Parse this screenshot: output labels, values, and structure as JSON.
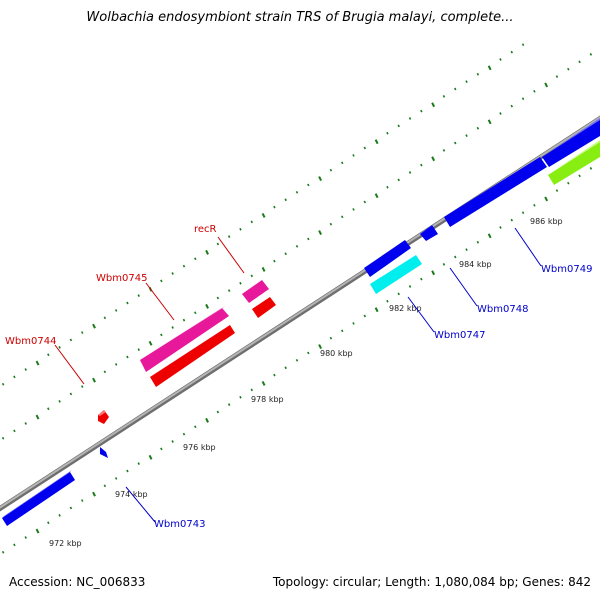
{
  "title": "Wolbachia endosymbiont strain TRS of Brugia malayi, complete...",
  "footer": {
    "accession": "Accession: NC_006833",
    "summary": "Topology: circular; Length: 1,080,084 bp; Genes: 842"
  },
  "colors": {
    "backbone": "#8c8c8c",
    "plus_strand_label": "#cc0000",
    "minus_strand_label": "#0000cc",
    "tick": "#1a7a1a",
    "gene_blue": "#0000ee",
    "gene_red": "#ee0000",
    "gene_magenta": "#ee22aa",
    "gene_cyan": "#00eeee",
    "gene_green": "#88ee11"
  },
  "ticks": [
    "972 kbp",
    "974 kbp",
    "976 kbp",
    "978 kbp",
    "980 kbp",
    "982 kbp",
    "984 kbp",
    "986 kbp"
  ],
  "gene_labels": [
    {
      "name": "recR",
      "strand": "plus"
    },
    {
      "name": "Wbm0745",
      "strand": "plus"
    },
    {
      "name": "Wbm0744",
      "strand": "plus"
    },
    {
      "name": "Wbm0743",
      "strand": "minus"
    },
    {
      "name": "Wbm0747",
      "strand": "minus"
    },
    {
      "name": "Wbm0748",
      "strand": "minus"
    },
    {
      "name": "Wbm0749",
      "strand": "minus"
    }
  ]
}
